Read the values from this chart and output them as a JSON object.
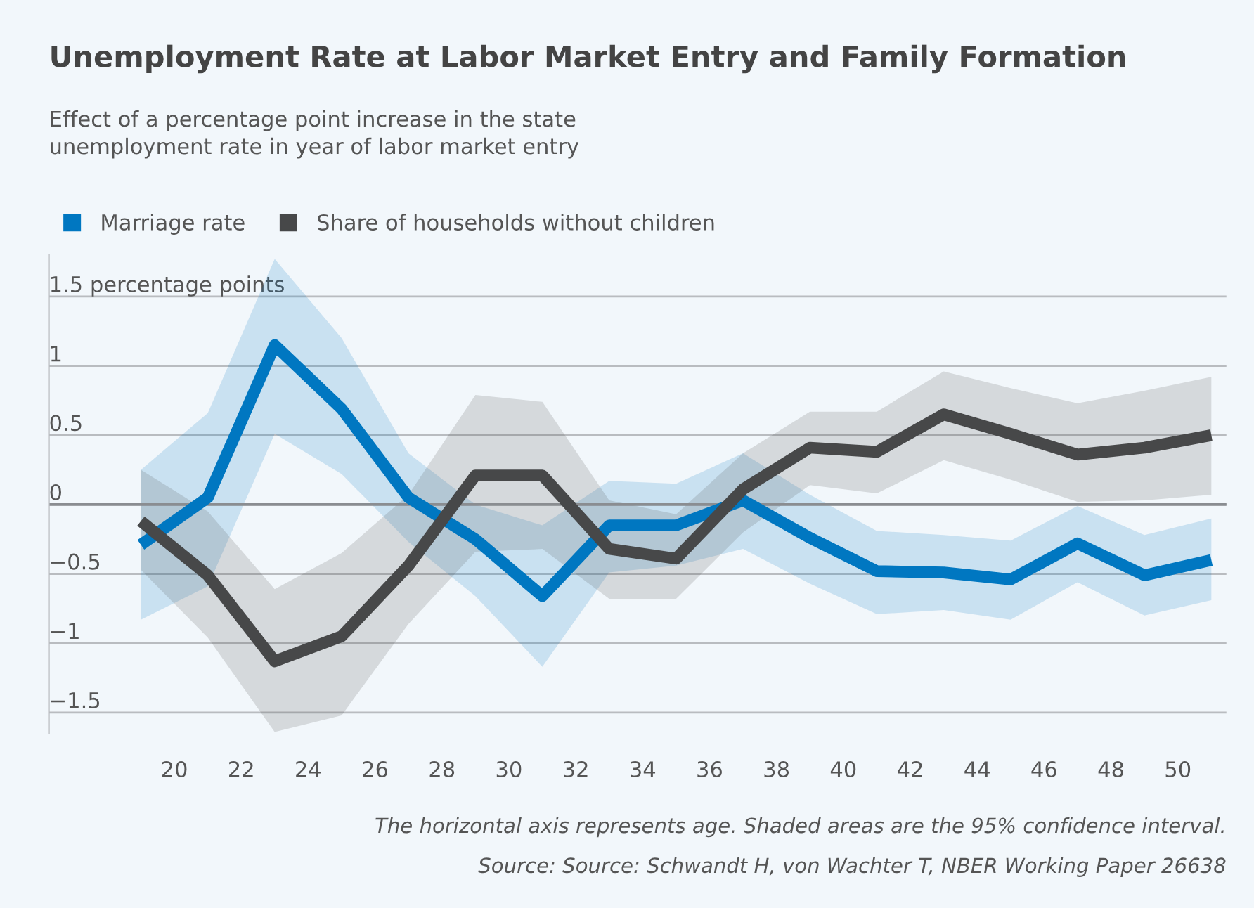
{
  "chart_data": {
    "type": "line",
    "title": "Unemployment Rate at Labor Market Entry and Family Formation",
    "subtitle": "Effect of a percentage point increase in the state\nunemployment rate in year of labor market entry",
    "x": [
      19,
      21,
      23,
      25,
      27,
      29,
      31,
      33,
      35,
      37,
      39,
      41,
      43,
      45,
      47,
      49,
      51
    ],
    "series": [
      {
        "name": "Marriage rate",
        "color": "#0077c1",
        "values": [
          -0.29,
          0.05,
          1.15,
          0.69,
          0.05,
          -0.25,
          -0.66,
          -0.15,
          -0.15,
          0.03,
          -0.24,
          -0.48,
          -0.49,
          -0.54,
          -0.28,
          -0.51,
          -0.4
        ],
        "lower": [
          -0.83,
          -0.59,
          0.51,
          0.22,
          -0.27,
          -0.66,
          -1.17,
          -0.49,
          -0.44,
          -0.32,
          -0.57,
          -0.79,
          -0.76,
          -0.83,
          -0.56,
          -0.8,
          -0.69
        ],
        "upper": [
          0.25,
          0.66,
          1.77,
          1.2,
          0.37,
          0.0,
          -0.15,
          0.17,
          0.15,
          0.37,
          0.07,
          -0.19,
          -0.22,
          -0.26,
          -0.01,
          -0.22,
          -0.1
        ]
      },
      {
        "name": "Share of households without children",
        "color": "#474849",
        "values": [
          -0.12,
          -0.51,
          -1.13,
          -0.95,
          -0.44,
          0.21,
          0.21,
          -0.32,
          -0.39,
          0.11,
          0.41,
          0.38,
          0.65,
          0.51,
          0.36,
          0.41,
          0.5
        ],
        "lower": [
          -0.47,
          -0.96,
          -1.64,
          -1.52,
          -0.86,
          -0.34,
          -0.32,
          -0.68,
          -0.68,
          -0.2,
          0.14,
          0.08,
          0.32,
          0.18,
          0.02,
          0.03,
          0.07
        ],
        "upper": [
          0.25,
          -0.05,
          -0.61,
          -0.35,
          0.07,
          0.79,
          0.74,
          0.03,
          -0.07,
          0.37,
          0.67,
          0.67,
          0.96,
          0.84,
          0.73,
          0.82,
          0.92
        ]
      }
    ],
    "xlim": [
      16.25,
      51.45
    ],
    "xticks": [
      20,
      22,
      24,
      26,
      28,
      30,
      32,
      34,
      36,
      38,
      40,
      42,
      44,
      46,
      48,
      50
    ],
    "ylim": [
      -1.65,
      1.8
    ],
    "yticks": [
      {
        "value": -1.5,
        "label": "−1.5"
      },
      {
        "value": -1,
        "label": "−1"
      },
      {
        "value": -0.5,
        "label": "−0.5"
      },
      0,
      0.5,
      1,
      {
        "value": 1.5,
        "label": "1.5 percentage points"
      }
    ],
    "ref_lines": [
      {
        "axis": "y",
        "value": 0,
        "color": "#8a8d91"
      }
    ],
    "grid": "y",
    "legend": "top left",
    "marker": "none",
    "line_style": "solid",
    "annotations": [
      "The horizontal axis represents age. Shaded areas are the 95% confidence interval.",
      "Source: Source: Schwandt H, von Wachter T, NBER Working Paper 26638"
    ]
  }
}
